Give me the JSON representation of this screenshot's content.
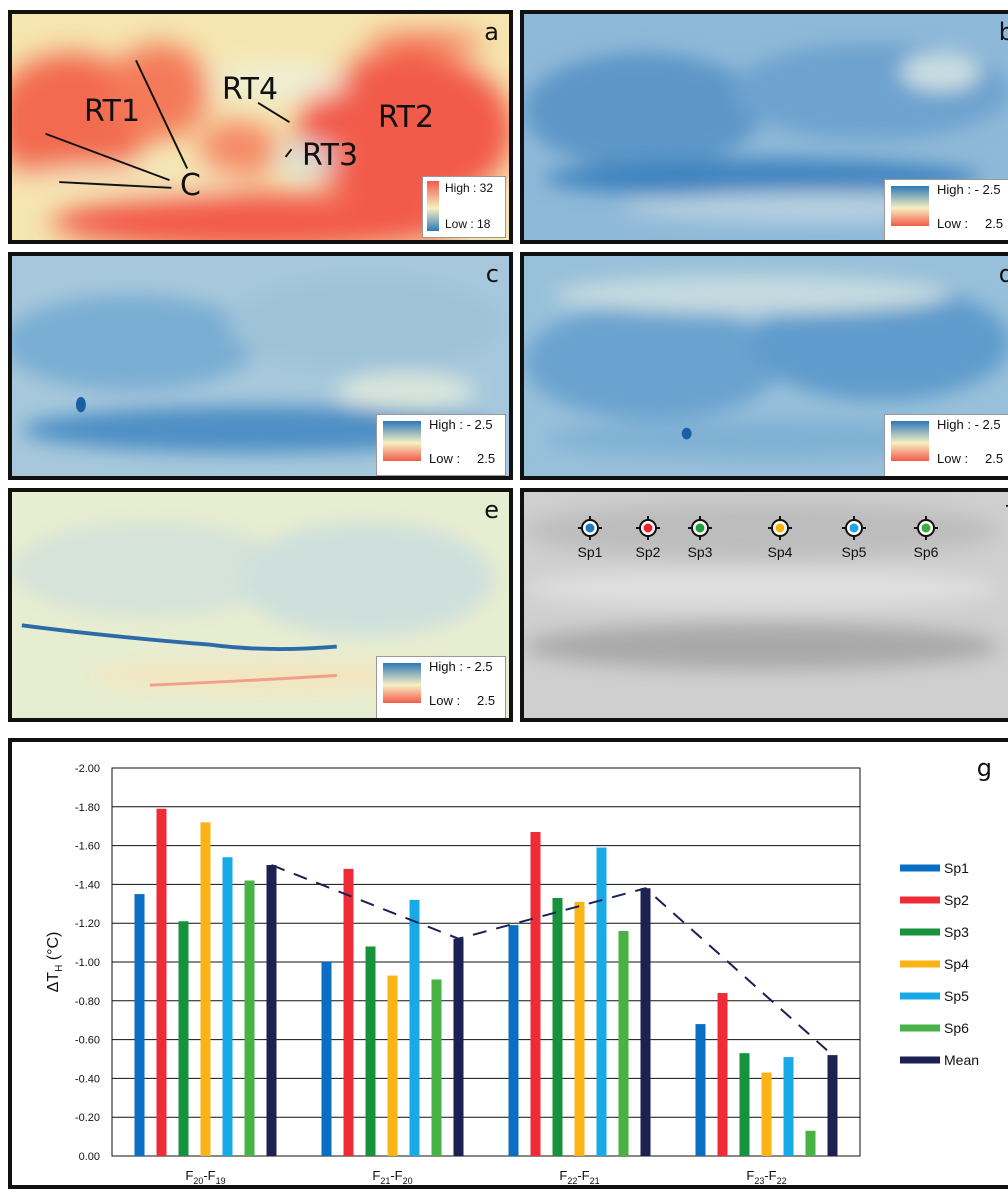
{
  "panels": {
    "a": {
      "letter": "a",
      "regions": [
        "RT1",
        "RT2",
        "RT3",
        "RT4",
        "C"
      ],
      "legend": {
        "high": "High : 32",
        "low": "Low : 18"
      }
    },
    "b": {
      "letter": "b",
      "legend": {
        "high": "High : - 2.5",
        "low_label": "Low :",
        "low_value": "2.5"
      }
    },
    "c": {
      "letter": "c",
      "legend": {
        "high": "High : - 2.5",
        "low_label": "Low :",
        "low_value": "2.5"
      }
    },
    "d": {
      "letter": "d",
      "legend": {
        "high": "High : - 2.5",
        "low_label": "Low :",
        "low_value": "2.5"
      }
    },
    "e": {
      "letter": "e",
      "legend": {
        "high": "High : - 2.5",
        "low_label": "Low :",
        "low_value": "2.5"
      }
    },
    "f": {
      "letter": "f",
      "points": [
        {
          "label": "Sp1",
          "color": "#1f77c9"
        },
        {
          "label": "Sp2",
          "color": "#e8252e"
        },
        {
          "label": "Sp3",
          "color": "#1e9e3e"
        },
        {
          "label": "Sp4",
          "color": "#f6b20f"
        },
        {
          "label": "Sp5",
          "color": "#1aa7e4"
        },
        {
          "label": "Sp6",
          "color": "#3cae3a"
        }
      ]
    },
    "g": {
      "letter": "g"
    }
  },
  "colors": {
    "warm": "#f4624a",
    "neutral": "#f7f0c2",
    "cool": "#2e78b8",
    "gray_bg": "#c8c8c8"
  },
  "chart_data": {
    "type": "bar",
    "categories": [
      "F20-F19",
      "F21-F20",
      "F22-F21",
      "F23-F22"
    ],
    "category_parts": [
      {
        "a": "F",
        "a_sub": "20",
        "b": "F",
        "b_sub": "19"
      },
      {
        "a": "F",
        "a_sub": "21",
        "b": "F",
        "b_sub": "20"
      },
      {
        "a": "F",
        "a_sub": "22",
        "b": "F",
        "b_sub": "21"
      },
      {
        "a": "F",
        "a_sub": "23",
        "b": "F",
        "b_sub": "22"
      }
    ],
    "series": [
      {
        "name": "Sp1",
        "color": "#0a6fc2",
        "values": [
          -1.35,
          -1.0,
          -1.19,
          -0.68
        ]
      },
      {
        "name": "Sp2",
        "color": "#ef2b38",
        "values": [
          -1.79,
          -1.48,
          -1.67,
          -0.84
        ]
      },
      {
        "name": "Sp3",
        "color": "#15923b",
        "values": [
          -1.21,
          -1.08,
          -1.33,
          -0.53
        ]
      },
      {
        "name": "Sp4",
        "color": "#fcb315",
        "values": [
          -1.72,
          -0.93,
          -1.31,
          -0.43
        ]
      },
      {
        "name": "Sp5",
        "color": "#18aae6",
        "values": [
          -1.54,
          -1.32,
          -1.59,
          -0.51
        ]
      },
      {
        "name": "Sp6",
        "color": "#49b244",
        "values": [
          -1.42,
          -0.91,
          -1.16,
          -0.13
        ]
      },
      {
        "name": "Mean",
        "color": "#1c2152",
        "values": [
          -1.5,
          -1.12,
          -1.38,
          -0.52
        ]
      }
    ],
    "mean_trend_line": true,
    "ylabel_main": "ΔT",
    "ylabel_sub": "H",
    "ylabel_unit": " (°C)",
    "ylim": [
      0,
      -2.0
    ],
    "y_ticks": [
      "0.00",
      "-0.20",
      "-0.40",
      "-0.60",
      "-0.80",
      "-1.00",
      "-1.20",
      "-1.40",
      "-1.60",
      "-1.80",
      "-2.00"
    ],
    "y_tick_values": [
      0,
      -0.2,
      -0.4,
      -0.6,
      -0.8,
      -1.0,
      -1.2,
      -1.4,
      -1.6,
      -1.8,
      -2.0
    ],
    "grid": true,
    "legend_position": "right"
  }
}
